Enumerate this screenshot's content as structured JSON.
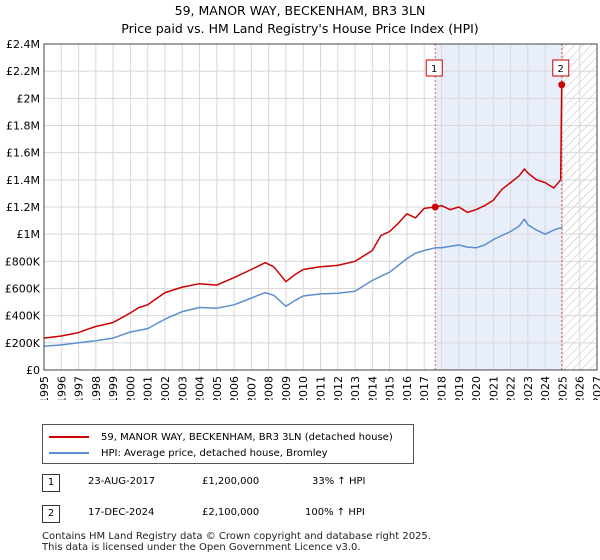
{
  "titles": {
    "line1": "59, MANOR WAY, BECKENHAM, BR3 3LN",
    "line2": "Price paid vs. HM Land Registry's House Price Index (HPI)"
  },
  "chart_data": {
    "type": "line",
    "title": "59, MANOR WAY, BECKENHAM, BR3 3LN",
    "subtitle": "Price paid vs. HM Land Registry's House Price Index (HPI)",
    "xlabel": "",
    "ylabel": "",
    "xlim": [
      1995,
      2027
    ],
    "ylim": [
      0,
      2400000
    ],
    "y_ticks": [
      0,
      200000,
      400000,
      600000,
      800000,
      1000000,
      1200000,
      1400000,
      1600000,
      1800000,
      2000000,
      2200000,
      2400000
    ],
    "y_tick_labels": [
      "£0",
      "£200K",
      "£400K",
      "£600K",
      "£800K",
      "£1M",
      "£1.2M",
      "£1.4M",
      "£1.6M",
      "£1.8M",
      "£2M",
      "£2.2M",
      "£2.4M"
    ],
    "x_ticks": [
      1995,
      1996,
      1997,
      1998,
      1999,
      2000,
      2001,
      2002,
      2003,
      2004,
      2005,
      2006,
      2007,
      2008,
      2009,
      2010,
      2011,
      2012,
      2013,
      2014,
      2015,
      2016,
      2017,
      2018,
      2019,
      2020,
      2021,
      2022,
      2023,
      2024,
      2025,
      2026,
      2027
    ],
    "grid": true,
    "shaded_region": [
      2017.64,
      2024.96
    ],
    "hatched_after": 2025.0,
    "series": [
      {
        "name": "59, MANOR WAY, BECKENHAM, BR3 3LN (detached house)",
        "color": "#cc0000",
        "x": [
          1995.0,
          1996.0,
          1997.0,
          1997.5,
          1998.0,
          1999.0,
          2000.0,
          2000.5,
          2001.0,
          2002.0,
          2003.0,
          2004.0,
          2005.0,
          2006.0,
          2007.0,
          2007.8,
          2008.3,
          2009.0,
          2009.5,
          2010.0,
          2011.0,
          2012.0,
          2013.0,
          2014.0,
          2014.5,
          2015.0,
          2015.5,
          2016.0,
          2016.5,
          2017.0,
          2017.64,
          2018.0,
          2018.5,
          2019.0,
          2019.5,
          2020.0,
          2020.5,
          2021.0,
          2021.5,
          2022.0,
          2022.5,
          2022.8,
          2023.0,
          2023.5,
          2024.0,
          2024.5,
          2024.9,
          2024.96,
          2025.0
        ],
        "values": [
          235000,
          250000,
          275000,
          300000,
          320000,
          350000,
          420000,
          460000,
          480000,
          570000,
          610000,
          635000,
          625000,
          680000,
          740000,
          790000,
          760000,
          650000,
          700000,
          740000,
          760000,
          770000,
          800000,
          880000,
          990000,
          1020000,
          1080000,
          1150000,
          1120000,
          1190000,
          1200000,
          1210000,
          1180000,
          1200000,
          1160000,
          1180000,
          1210000,
          1250000,
          1330000,
          1380000,
          1430000,
          1480000,
          1450000,
          1400000,
          1380000,
          1340000,
          1400000,
          2100000,
          2100000
        ]
      },
      {
        "name": "HPI: Average price, detached house, Bromley",
        "color": "#5b8fd1",
        "x": [
          1995.0,
          1996.0,
          1997.0,
          1998.0,
          1999.0,
          2000.0,
          2001.0,
          2002.0,
          2003.0,
          2004.0,
          2005.0,
          2006.0,
          2007.0,
          2007.8,
          2008.3,
          2009.0,
          2009.5,
          2010.0,
          2011.0,
          2012.0,
          2013.0,
          2014.0,
          2015.0,
          2016.0,
          2016.5,
          2017.0,
          2017.64,
          2018.0,
          2018.5,
          2019.0,
          2019.5,
          2020.0,
          2020.5,
          2021.0,
          2021.5,
          2022.0,
          2022.5,
          2022.8,
          2023.0,
          2023.5,
          2024.0,
          2024.5,
          2024.96,
          2025.0
        ],
        "values": [
          175000,
          185000,
          200000,
          215000,
          235000,
          280000,
          305000,
          375000,
          430000,
          460000,
          455000,
          480000,
          530000,
          570000,
          550000,
          470000,
          510000,
          545000,
          560000,
          565000,
          580000,
          660000,
          720000,
          820000,
          860000,
          880000,
          900000,
          900000,
          910000,
          920000,
          905000,
          900000,
          920000,
          960000,
          990000,
          1020000,
          1060000,
          1110000,
          1070000,
          1030000,
          1000000,
          1030000,
          1050000,
          1050000
        ]
      }
    ],
    "markers": [
      {
        "label": "1",
        "x": 2017.64,
        "y": 1200000
      },
      {
        "label": "2",
        "x": 2024.96,
        "y": 2100000
      }
    ]
  },
  "legend": {
    "items": [
      {
        "label": "59, MANOR WAY, BECKENHAM, BR3 3LN (detached house)",
        "color": "#cc0000"
      },
      {
        "label": "HPI: Average price, detached house, Bromley",
        "color": "#5b8fd1"
      }
    ]
  },
  "transactions": [
    {
      "num": "1",
      "date": "23-AUG-2017",
      "price": "£1,200,000",
      "hpi": "33% ↑ HPI"
    },
    {
      "num": "2",
      "date": "17-DEC-2024",
      "price": "£2,100,000",
      "hpi": "100% ↑ HPI"
    }
  ],
  "footer": {
    "line1": "Contains HM Land Registry data © Crown copyright and database right 2025.",
    "line2": "This data is licensed under the Open Government Licence v3.0."
  }
}
